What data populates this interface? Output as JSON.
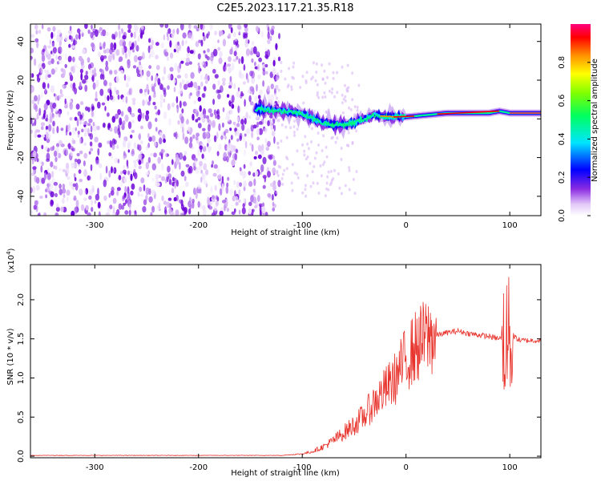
{
  "figure_title": "C2E5.2023.117.21.35.R18",
  "colors": {
    "snr_line": "#e8332c",
    "spectrum_base": "#8a2be2"
  },
  "chart_data": [
    {
      "type": "heatmap",
      "title": "C2E5.2023.117.21.35.R18",
      "xlabel": "Height of straight line (km)",
      "ylabel": "Frequency (Hz)",
      "xlim": [
        -362,
        130
      ],
      "ylim": [
        -50,
        49
      ],
      "xticks": [
        -300,
        -200,
        -100,
        0,
        100
      ],
      "xtick_labels": [
        "-300",
        "-200",
        "-100",
        "0",
        "100"
      ],
      "yticks": [
        -40,
        -20,
        0,
        20,
        40
      ],
      "ytick_labels": [
        "-40",
        "-20",
        "0",
        "20",
        "40"
      ],
      "colorbar": {
        "label": "Normalized spectral amplitude",
        "range": [
          0,
          1
        ],
        "ticks": [
          0.0,
          0.2,
          0.4,
          0.6,
          0.8
        ],
        "tick_labels": [
          "0.0",
          "0.2",
          "0.4",
          "0.6",
          "0.8"
        ]
      },
      "ridge": {
        "x": [
          -140,
          -120,
          -100,
          -90,
          -80,
          -70,
          -60,
          -50,
          -40,
          -30,
          -20,
          -10,
          0,
          20,
          40,
          60,
          80,
          90,
          100,
          130
        ],
        "y": [
          5,
          4,
          3,
          0,
          -2,
          -3,
          -3,
          -2,
          0,
          2,
          1,
          1,
          1,
          2,
          3,
          3,
          3,
          4,
          3,
          3
        ]
      }
    },
    {
      "type": "line",
      "xlabel": "Height of straight line (km)",
      "ylabel": "SNR (10 * v/v)",
      "scale_label": "(x10",
      "scale_exponent": "4",
      "scale_suffix": ")",
      "xlim": [
        -362,
        130
      ],
      "ylim": [
        -0.02,
        2.45
      ],
      "xticks": [
        -300,
        -200,
        -100,
        0,
        100
      ],
      "xtick_labels": [
        "-300",
        "-200",
        "-100",
        "0",
        "100"
      ],
      "yticks": [
        0.0,
        0.5,
        1.0,
        1.5,
        2.0
      ],
      "ytick_labels": [
        "0.0",
        "0.5",
        "1.0",
        "1.5",
        "2.0"
      ],
      "series": [
        {
          "name": "SNR",
          "x": [
            -362,
            -300,
            -200,
            -150,
            -120,
            -110,
            -100,
            -90,
            -80,
            -70,
            -60,
            -50,
            -40,
            -30,
            -20,
            -10,
            0,
            10,
            20,
            30,
            40,
            50,
            60,
            70,
            80,
            90,
            95,
            100,
            105,
            110,
            120,
            130
          ],
          "y": [
            0.01,
            0.01,
            0.01,
            0.01,
            0.01,
            0.02,
            0.03,
            0.06,
            0.12,
            0.2,
            0.3,
            0.4,
            0.52,
            0.7,
            0.85,
            1.0,
            1.25,
            1.4,
            1.52,
            1.55,
            1.58,
            1.6,
            1.57,
            1.55,
            1.53,
            1.5,
            1.55,
            1.5,
            1.52,
            1.48,
            1.48,
            1.48
          ]
        }
      ]
    }
  ]
}
